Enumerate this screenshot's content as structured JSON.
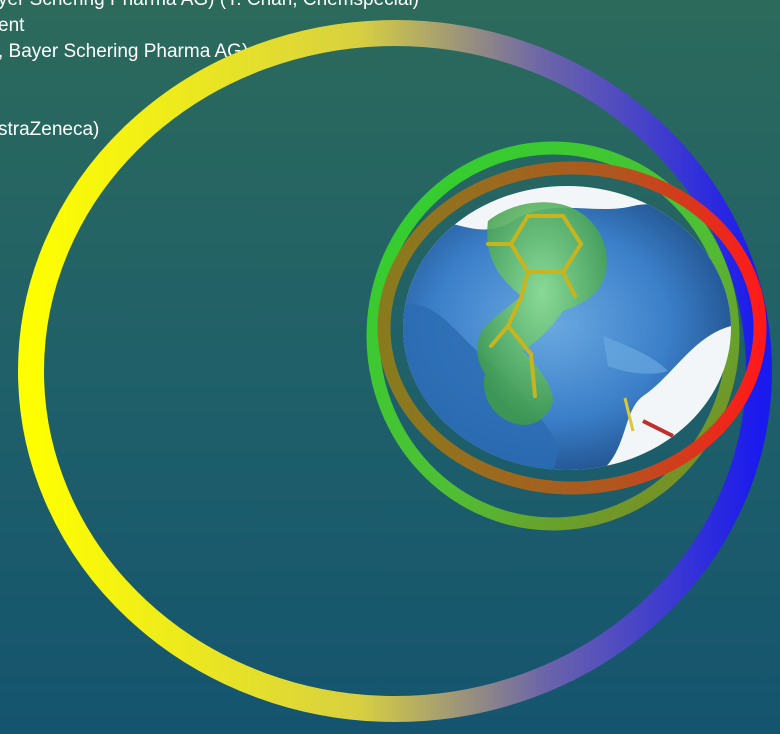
{
  "text_lines": [
    "yer Schering Pharma AG) (Y. Chan, Chemspecial)",
    "ent",
    ", Bayer Schering Pharma AG)",
    "straZeneca)"
  ],
  "figure": {
    "image_description": "",
    "colors": {
      "outer_ring": [
        "#ffff00",
        "#1a1aee"
      ],
      "middle_ring": [
        "#2ed12e",
        "#8a7a1e"
      ],
      "inner_ring": [
        "#8a7a1e",
        "#ff1a1a"
      ],
      "surface": "#3b7fc9",
      "ligand": "#6fd16f"
    }
  }
}
